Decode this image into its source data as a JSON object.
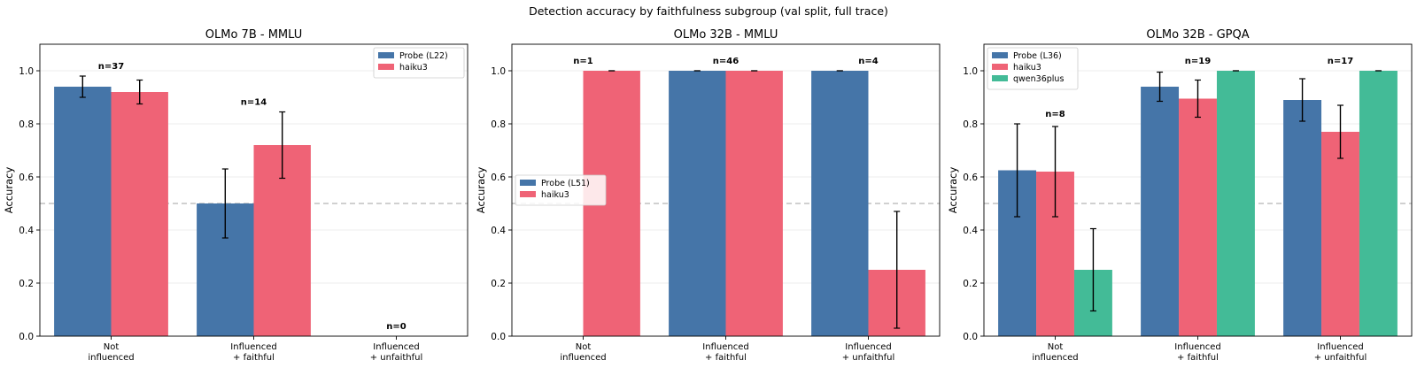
{
  "suptitle": "Detection accuracy by faithfulness subgroup (val split, full trace)",
  "colors": {
    "probe": "#4575a8",
    "haiku3": "#ef6376",
    "qwen36plus": "#43bb97",
    "refline": "#b5b5b5",
    "grid": "#e6e6e6"
  },
  "chart_data": [
    {
      "type": "bar",
      "title": "OLMo 7B - MMLU",
      "ylabel": "Accuracy",
      "ylim": [
        0,
        1.1
      ],
      "yticks": [
        "0.0",
        "0.2",
        "0.4",
        "0.6",
        "0.8",
        "1.0"
      ],
      "reference_line": 0.5,
      "grid": "horizontal",
      "legend_position": "top-right",
      "categories": [
        [
          "Not",
          "influenced"
        ],
        [
          "Influenced",
          "+ faithful"
        ],
        [
          "Influenced",
          "+ unfaithful"
        ]
      ],
      "n_labels": [
        "n=37",
        "n=14",
        "n=0"
      ],
      "series": [
        {
          "name": "Probe (L22)",
          "color_key": "probe",
          "values": [
            0.94,
            0.5,
            0.0
          ],
          "err": [
            0.04,
            0.13,
            0.0
          ]
        },
        {
          "name": "haiku3",
          "color_key": "haiku3",
          "values": [
            0.92,
            0.72,
            0.0
          ],
          "err": [
            0.045,
            0.125,
            0.0
          ]
        }
      ]
    },
    {
      "type": "bar",
      "title": "OLMo 32B - MMLU",
      "ylabel": "Accuracy",
      "ylim": [
        0,
        1.1
      ],
      "yticks": [
        "0.0",
        "0.2",
        "0.4",
        "0.6",
        "0.8",
        "1.0"
      ],
      "reference_line": 0.5,
      "grid": "horizontal",
      "legend_position": "center-left",
      "categories": [
        [
          "Not",
          "influenced"
        ],
        [
          "Influenced",
          "+ faithful"
        ],
        [
          "Influenced",
          "+ unfaithful"
        ]
      ],
      "n_labels": [
        "n=1",
        "n=46",
        "n=4"
      ],
      "series": [
        {
          "name": "Probe (L51)",
          "color_key": "probe",
          "values": [
            0.0,
            1.0,
            1.0
          ],
          "err": [
            0.0,
            0.0,
            0.0
          ]
        },
        {
          "name": "haiku3",
          "color_key": "haiku3",
          "values": [
            1.0,
            1.0,
            0.25
          ],
          "err": [
            0.0,
            0.0,
            0.22
          ]
        }
      ]
    },
    {
      "type": "bar",
      "title": "OLMo 32B - GPQA",
      "ylabel": "Accuracy",
      "ylim": [
        0,
        1.1
      ],
      "yticks": [
        "0.0",
        "0.2",
        "0.4",
        "0.6",
        "0.8",
        "1.0"
      ],
      "reference_line": 0.5,
      "grid": "horizontal",
      "legend_position": "top-left",
      "categories": [
        [
          "Not",
          "influenced"
        ],
        [
          "Influenced",
          "+ faithful"
        ],
        [
          "Influenced",
          "+ unfaithful"
        ]
      ],
      "n_labels": [
        "n=8",
        "n=19",
        "n=17"
      ],
      "series": [
        {
          "name": "Probe (L36)",
          "color_key": "probe",
          "values": [
            0.625,
            0.94,
            0.89
          ],
          "err": [
            0.175,
            0.055,
            0.08
          ]
        },
        {
          "name": "haiku3",
          "color_key": "haiku3",
          "values": [
            0.62,
            0.895,
            0.77
          ],
          "err": [
            0.17,
            0.07,
            0.1
          ]
        },
        {
          "name": "qwen36plus",
          "color_key": "qwen36plus",
          "values": [
            0.25,
            1.0,
            1.0
          ],
          "err": [
            0.155,
            0.0,
            0.0
          ]
        }
      ]
    }
  ]
}
